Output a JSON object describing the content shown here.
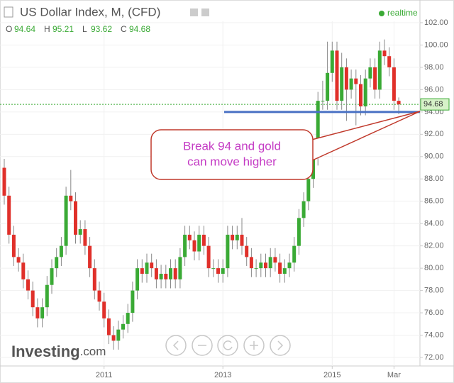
{
  "header": {
    "title": "US Dollar Index, M, (CFD)",
    "status": "realtime",
    "ohlc": [
      {
        "label": "O",
        "value": 94.64
      },
      {
        "label": "H",
        "value": 95.21
      },
      {
        "label": "L",
        "value": 93.62
      },
      {
        "label": "C",
        "value": 94.68
      }
    ]
  },
  "logo": {
    "brand": "Investing",
    "suffix": ".com"
  },
  "chart_data": {
    "type": "candlestick",
    "categories": [
      null,
      null,
      null,
      null,
      null,
      null,
      null,
      null,
      null,
      null,
      null,
      null,
      null,
      null,
      null,
      null,
      null,
      null,
      null,
      null,
      null,
      "2011",
      null,
      null,
      null,
      null,
      null,
      null,
      null,
      null,
      null,
      null,
      null,
      null,
      null,
      null,
      null,
      null,
      null,
      null,
      null,
      null,
      null,
      null,
      null,
      null,
      "2013",
      null,
      null,
      null,
      null,
      null,
      null,
      null,
      null,
      null,
      null,
      null,
      null,
      null,
      null,
      null,
      null,
      null,
      null,
      null,
      null,
      null,
      null,
      "2015",
      null,
      null,
      null,
      null,
      null,
      null,
      null,
      null,
      null,
      null,
      null,
      null,
      "Mar",
      null
    ],
    "open": [
      89,
      86.5,
      83,
      81,
      80.5,
      79,
      78,
      76.5,
      75.5,
      76.5,
      78.5,
      80,
      81,
      82,
      86.5,
      86,
      83,
      83.5,
      82,
      80,
      78,
      77,
      75.5,
      74,
      73.5,
      74.5,
      75,
      76,
      78,
      80,
      79.5,
      80.5,
      80,
      79,
      79.5,
      79,
      80,
      79,
      81,
      83,
      82.5,
      81.5,
      83,
      82,
      80,
      80,
      79.5,
      80,
      83,
      82.5,
      83,
      82,
      81,
      80,
      80,
      80.5,
      80,
      81,
      80.5,
      79.5,
      80,
      80.5,
      82,
      84.5,
      86,
      88,
      90,
      95,
      95,
      97.5,
      99.5,
      95,
      98,
      96,
      97,
      96.5,
      94.5,
      97,
      98,
      96,
      99.5,
      99,
      98,
      95
    ],
    "high": [
      89.8,
      87.3,
      83.8,
      81.8,
      81.3,
      79.8,
      78.8,
      77.3,
      77.3,
      79.3,
      80.8,
      81.8,
      82.8,
      87.3,
      88.8,
      86.8,
      84.3,
      84.3,
      82.8,
      80.8,
      78.8,
      77.8,
      76.3,
      74.8,
      75.3,
      75.8,
      76.8,
      78.8,
      80.8,
      80.8,
      81.3,
      81.3,
      80.8,
      80.3,
      80.3,
      80.8,
      80.8,
      81.8,
      83.8,
      83.8,
      83.3,
      83.8,
      83.8,
      82.8,
      80.8,
      80.8,
      80.8,
      83.8,
      83.8,
      83.8,
      84.5,
      82.8,
      81.8,
      80.8,
      81.3,
      81.3,
      81.8,
      81.8,
      81.3,
      80.8,
      81.3,
      82.8,
      85.3,
      86.8,
      88.8,
      90.8,
      95.8,
      96.8,
      100.3,
      100.3,
      100.3,
      99.3,
      98.8,
      97.8,
      97.8,
      97.3,
      97.8,
      98.8,
      98.8,
      100.3,
      100.5,
      99.8,
      98.8,
      95.3
    ],
    "low": [
      85.7,
      82.2,
      80.2,
      79.7,
      78.2,
      77.2,
      75.7,
      74.7,
      74.7,
      75.7,
      77.7,
      79.2,
      80.2,
      81.2,
      85.2,
      82.2,
      82.2,
      81.2,
      79.2,
      77.2,
      76.2,
      74.7,
      73.2,
      72.7,
      72.7,
      73.7,
      74.2,
      75.2,
      77.2,
      78.7,
      78.7,
      79.2,
      78.2,
      78.2,
      78.2,
      78.2,
      78.2,
      78.2,
      80.2,
      81.7,
      80.7,
      80.7,
      81.2,
      79.2,
      79.2,
      78.7,
      78.7,
      79.2,
      81.7,
      81.7,
      81.2,
      80.2,
      79.2,
      79.2,
      79.2,
      79.2,
      79.2,
      79.7,
      78.7,
      78.7,
      79.2,
      79.7,
      81.2,
      83.7,
      85.2,
      87.2,
      89.2,
      94.2,
      94.2,
      96.7,
      94.2,
      94.2,
      93.2,
      95.2,
      92.8,
      93.7,
      93.7,
      96.2,
      95.2,
      95.2,
      98.2,
      97.2,
      94.2,
      93.8
    ],
    "close": [
      86.5,
      83,
      81,
      80.5,
      79,
      78,
      76.5,
      75.5,
      76.5,
      78.5,
      80,
      81,
      82,
      86.5,
      86,
      83,
      83.5,
      82,
      80,
      78,
      77,
      75.5,
      74,
      73.5,
      74.5,
      75,
      76,
      78,
      80,
      79.5,
      80.5,
      80,
      79,
      79.5,
      79,
      80,
      79,
      81,
      83,
      82.5,
      81.5,
      83,
      82,
      80,
      80,
      79.5,
      80,
      83,
      82.5,
      83,
      82,
      81,
      80,
      80,
      80.5,
      80,
      81,
      80.5,
      79.5,
      80,
      80.5,
      82,
      84.5,
      86,
      88,
      90,
      95,
      95,
      97.5,
      99.5,
      95,
      98,
      96,
      97,
      96.5,
      94.5,
      97,
      98,
      96,
      99.5,
      99,
      98,
      95,
      94.68
    ],
    "up_color": "#3aaa35",
    "down_color": "#e0302a",
    "ylim": [
      71,
      103
    ],
    "yticks": [
      {
        "value": 72,
        "label": "72.00"
      },
      {
        "value": 74,
        "label": "74.00"
      },
      {
        "value": 76,
        "label": "76.00"
      },
      {
        "value": 78,
        "label": "78.00"
      },
      {
        "value": 80,
        "label": "80.00"
      },
      {
        "value": 82,
        "label": "82.00"
      },
      {
        "value": 84,
        "label": "84.00"
      },
      {
        "value": 86,
        "label": "86.00"
      },
      {
        "value": 88,
        "label": "88.00"
      },
      {
        "value": 90,
        "label": "90.00"
      },
      {
        "value": 92,
        "label": "92.00"
      },
      {
        "value": 94,
        "label": "94.00"
      },
      {
        "value": 96,
        "label": "96.00"
      },
      {
        "value": 98,
        "label": "98.00"
      },
      {
        "value": 100,
        "label": "100.00"
      },
      {
        "value": 102,
        "label": "102.00"
      }
    ],
    "grid": true,
    "last_price": 94.68,
    "support_level": 94,
    "annotation": [
      "Break 94 and gold",
      "can move higher"
    ]
  }
}
